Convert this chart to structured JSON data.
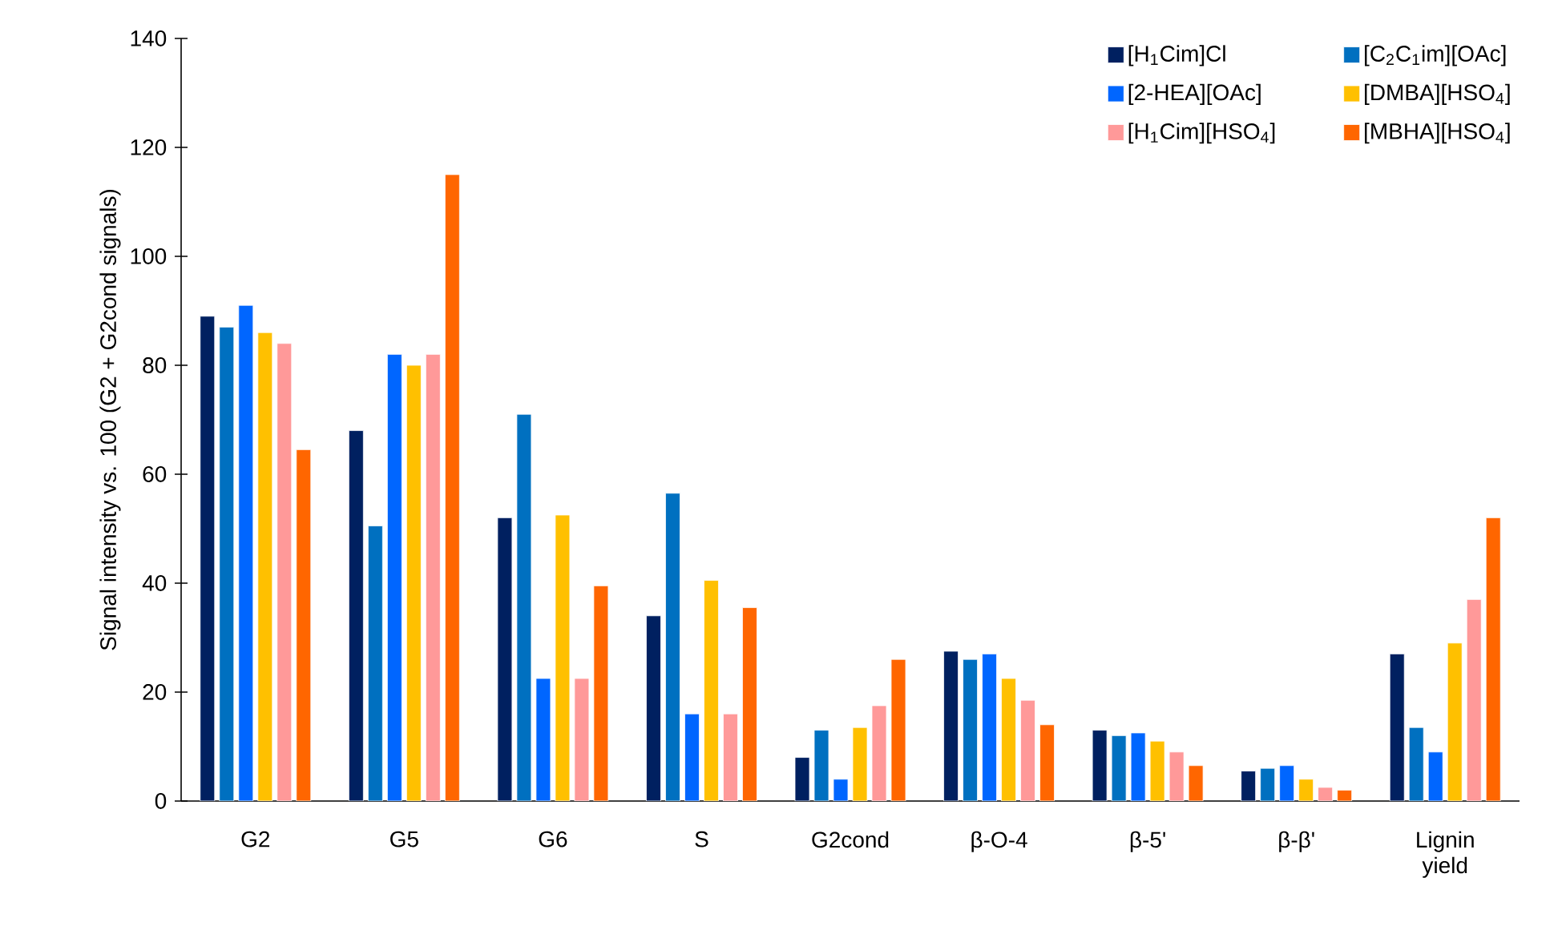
{
  "chart_data": {
    "type": "bar",
    "ylabel": "Signal intensity vs. 100 (G2 + G2cond signals)",
    "categories": [
      "G2",
      "G5",
      "G6",
      "S",
      "G2cond",
      "β-O-4",
      "β-5'",
      "β-β'",
      "Lignin yield"
    ],
    "series": [
      {
        "name": "[H$_{1}$Cim]Cl",
        "color": "#002060",
        "values": [
          89,
          68,
          52,
          34,
          8,
          27.5,
          13,
          5.5,
          27
        ]
      },
      {
        "name": "[C$_{2}$C$_{1}$im][OAc]",
        "color": "#0070c0",
        "values": [
          87,
          50.5,
          71,
          56.5,
          13,
          26,
          12,
          6,
          13.5
        ]
      },
      {
        "name": "[2-HEA][OAc]",
        "color": "#0066ff",
        "values": [
          91,
          82,
          22.5,
          16,
          4,
          27,
          12.5,
          6.5,
          9
        ]
      },
      {
        "name": "[DMBA][HSO$_{4}$]",
        "color": "#ffc000",
        "values": [
          86,
          80,
          52.5,
          40.5,
          13.5,
          22.5,
          11,
          4,
          29
        ]
      },
      {
        "name": "[H$_{1}$Cim][HSO$_{4}$]",
        "color": "#ff9999",
        "values": [
          84,
          82,
          22.5,
          16,
          17.5,
          18.5,
          9,
          2.5,
          37
        ]
      },
      {
        "name": "[MBHA][HSO$_{4}$]",
        "color": "#ff6600",
        "values": [
          64.5,
          115,
          39.5,
          35.5,
          26,
          14,
          6.5,
          2,
          52
        ]
      }
    ],
    "ylim": [
      0,
      140
    ],
    "yticks": [
      0,
      20,
      40,
      60,
      80,
      100,
      120,
      140
    ],
    "legend": "top right"
  }
}
